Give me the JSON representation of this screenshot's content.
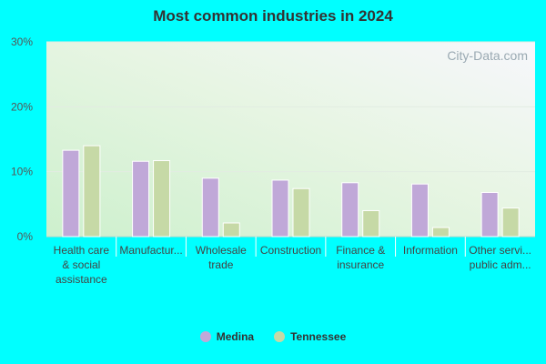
{
  "chart_data": {
    "type": "bar",
    "title": "Most common industries in 2024",
    "categories": [
      [
        "Health care",
        "& social",
        "assistance"
      ],
      [
        "Manufactur..."
      ],
      [
        "Wholesale",
        "trade"
      ],
      [
        "Construction"
      ],
      [
        "Finance &",
        "insurance"
      ],
      [
        "Information"
      ],
      [
        "Other servi...",
        "public adm..."
      ]
    ],
    "series": [
      {
        "name": "Medina",
        "color": "#c0a8d8",
        "values": [
          13.3,
          11.6,
          9.0,
          8.7,
          8.3,
          8.1,
          6.8
        ]
      },
      {
        "name": "Tennessee",
        "color": "#c6d9a6",
        "values": [
          14.0,
          11.7,
          2.1,
          7.4,
          4.0,
          1.4,
          4.4
        ]
      }
    ],
    "ylim": [
      0,
      30
    ],
    "yticks": [
      "0%",
      "10%",
      "20%",
      "30%"
    ],
    "grid": true,
    "legend_position": "bottom"
  },
  "watermark": "City-Data.com"
}
